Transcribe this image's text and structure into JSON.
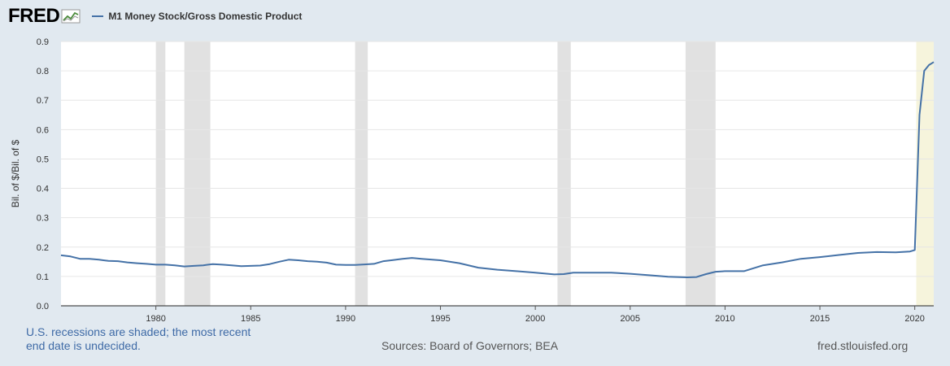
{
  "header": {
    "logo_text": "FRED",
    "legend_label": "M1 Money Stock/Gross Domestic Product"
  },
  "colors": {
    "line": "#4572a7",
    "recession": "#e1e1e1",
    "undecided": "#f6f4dc",
    "background": "#e1e9f0"
  },
  "footer": {
    "recession_note": "U.S. recessions are shaded; the most recent end date is undecided.",
    "sources": "Sources: Board of Governors; BEA",
    "site": "fred.stlouisfed.org"
  },
  "chart_data": {
    "type": "line",
    "title": "",
    "xlabel": "",
    "ylabel": "Bil. of $/Bil. of $",
    "xlim": [
      1975.0,
      2021.0
    ],
    "ylim": [
      0,
      0.9
    ],
    "yticks": [
      "0.0",
      "0.1",
      "0.2",
      "0.3",
      "0.4",
      "0.5",
      "0.6",
      "0.7",
      "0.8",
      "0.9"
    ],
    "xticks": [
      "1980",
      "1985",
      "1990",
      "1995",
      "2000",
      "2005",
      "2010",
      "2015",
      "2020"
    ],
    "grid": "horizontal",
    "legend": "top-left",
    "recessions": [
      [
        1980.0,
        1980.5
      ],
      [
        1981.5,
        1982.87
      ],
      [
        1990.5,
        1991.17
      ],
      [
        2001.17,
        2001.87
      ],
      [
        2007.92,
        2009.5
      ]
    ],
    "recession_undecided": [
      2020.08,
      2021.0
    ],
    "series": [
      {
        "name": "M1 Money Stock/Gross Domestic Product",
        "x": [
          1975.0,
          1975.5,
          1976.0,
          1976.5,
          1977.0,
          1977.5,
          1978.0,
          1978.5,
          1979.0,
          1979.5,
          1980.0,
          1980.5,
          1981.0,
          1981.5,
          1982.0,
          1982.5,
          1983.0,
          1983.5,
          1984.0,
          1984.5,
          1985.0,
          1985.5,
          1986.0,
          1986.5,
          1987.0,
          1987.5,
          1988.0,
          1988.5,
          1989.0,
          1989.5,
          1990.0,
          1990.5,
          1991.0,
          1991.5,
          1992.0,
          1992.5,
          1993.0,
          1993.5,
          1994.0,
          1995.0,
          1996.0,
          1997.0,
          1998.0,
          1999.0,
          2000.0,
          2001.0,
          2001.5,
          2002.0,
          2003.0,
          2004.0,
          2005.0,
          2006.0,
          2007.0,
          2008.0,
          2008.5,
          2009.0,
          2009.5,
          2010.0,
          2011.0,
          2012.0,
          2013.0,
          2014.0,
          2015.0,
          2016.0,
          2017.0,
          2018.0,
          2019.0,
          2019.75,
          2020.0,
          2020.25,
          2020.5,
          2020.75,
          2021.0
        ],
        "y": [
          0.172,
          0.168,
          0.16,
          0.16,
          0.157,
          0.153,
          0.152,
          0.148,
          0.145,
          0.143,
          0.14,
          0.14,
          0.138,
          0.134,
          0.136,
          0.138,
          0.142,
          0.14,
          0.138,
          0.135,
          0.136,
          0.137,
          0.142,
          0.15,
          0.157,
          0.155,
          0.152,
          0.15,
          0.147,
          0.14,
          0.139,
          0.139,
          0.141,
          0.143,
          0.152,
          0.156,
          0.16,
          0.163,
          0.16,
          0.155,
          0.145,
          0.13,
          0.123,
          0.118,
          0.113,
          0.107,
          0.108,
          0.113,
          0.113,
          0.113,
          0.109,
          0.104,
          0.099,
          0.097,
          0.098,
          0.108,
          0.116,
          0.118,
          0.118,
          0.138,
          0.148,
          0.16,
          0.166,
          0.173,
          0.18,
          0.183,
          0.182,
          0.185,
          0.19,
          0.65,
          0.8,
          0.82,
          0.83
        ]
      }
    ]
  }
}
